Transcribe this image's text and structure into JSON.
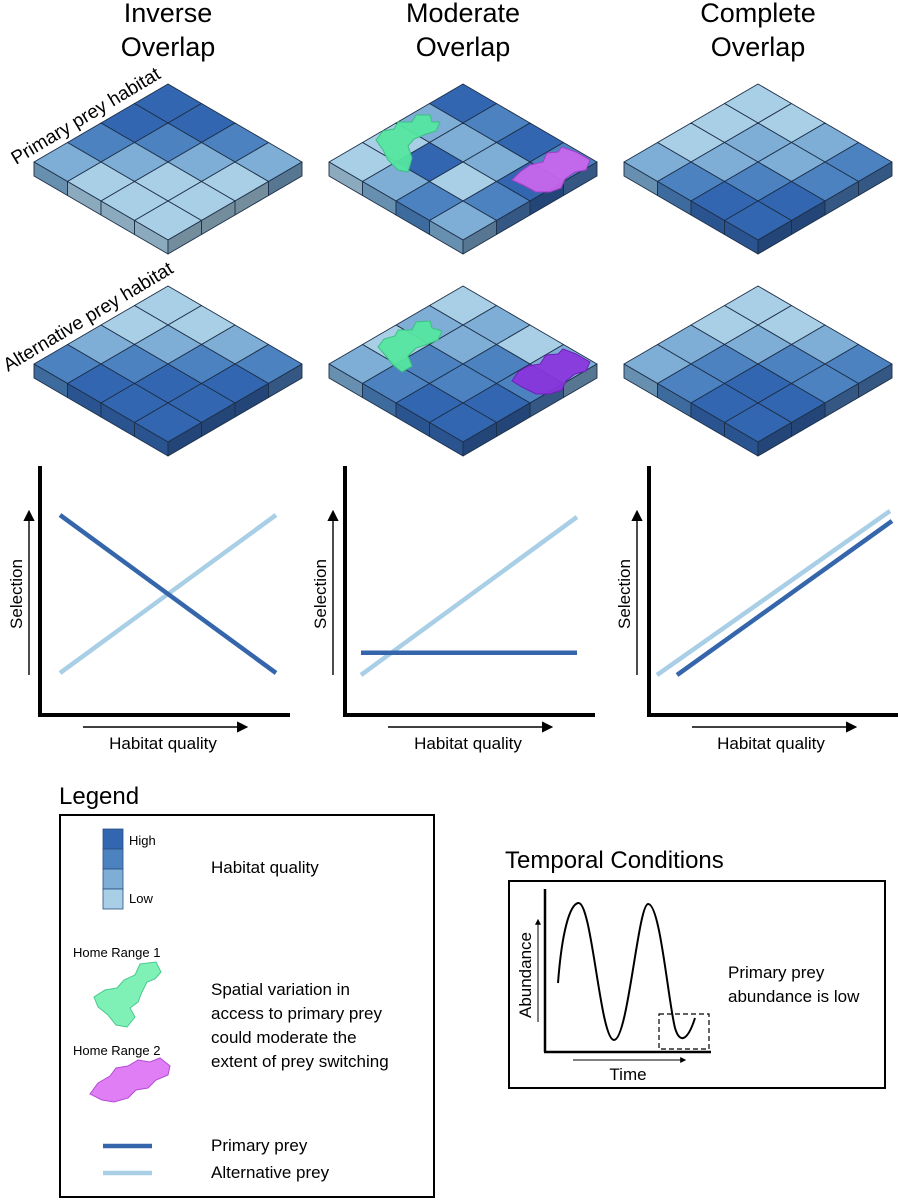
{
  "colors": {
    "q1": "#3366b0",
    "q2": "#4c82c0",
    "q3": "#7eaed5",
    "q4": "#a9cfe6",
    "primary_line": "#3566ab",
    "alternative_line": "#a9cfe6",
    "home_range_1": "#55e6a0",
    "home_range_2": "#cc66ee"
  },
  "columns": [
    {
      "title_line1": "Inverse",
      "title_line2": "Overlap"
    },
    {
      "title_line1": "Moderate",
      "title_line2": "Overlap"
    },
    {
      "title_line1": "Complete",
      "title_line2": "Overlap"
    }
  ],
  "rows": {
    "primary": "Primary prey habitat",
    "alternative": "Alternative prey habitat"
  },
  "grids": {
    "primary": [
      [
        [
          1,
          1,
          2,
          3
        ],
        [
          1,
          2,
          3,
          4
        ],
        [
          2,
          3,
          4,
          4
        ],
        [
          3,
          4,
          4,
          4
        ]
      ],
      [
        [
          1,
          3,
          4,
          4
        ],
        [
          2,
          3,
          1,
          3
        ],
        [
          1,
          3,
          4,
          2
        ],
        [
          2,
          1,
          2,
          3
        ]
      ],
      [
        [
          4,
          4,
          4,
          3
        ],
        [
          4,
          3,
          3,
          2
        ],
        [
          3,
          3,
          2,
          1
        ],
        [
          2,
          2,
          1,
          1
        ]
      ]
    ],
    "alternative": [
      [
        [
          4,
          4,
          3,
          2
        ],
        [
          4,
          3,
          2,
          1
        ],
        [
          3,
          2,
          1,
          1
        ],
        [
          2,
          1,
          1,
          1
        ]
      ],
      [
        [
          4,
          3,
          4,
          3
        ],
        [
          3,
          3,
          2,
          2
        ],
        [
          4,
          2,
          2,
          1
        ],
        [
          3,
          2,
          1,
          1
        ]
      ],
      [
        [
          4,
          4,
          3,
          3
        ],
        [
          4,
          3,
          2,
          2
        ],
        [
          3,
          2,
          1,
          1
        ],
        [
          2,
          2,
          1,
          1
        ]
      ]
    ]
  },
  "graphs": {
    "x_label": "Habitat quality",
    "y_label": "Selection",
    "series": [
      "Primary prey",
      "Alternative prey"
    ]
  },
  "chart_data": [
    {
      "type": "line",
      "title": "Inverse Overlap",
      "xlabel": "Habitat quality",
      "ylabel": "Selection",
      "x": [
        0,
        1
      ],
      "series": [
        {
          "name": "Primary prey",
          "values": [
            0.85,
            0.0
          ]
        },
        {
          "name": "Alternative prey",
          "values": [
            0.0,
            0.85
          ]
        }
      ],
      "xlim": [
        0,
        1
      ],
      "ylim": [
        0,
        1
      ]
    },
    {
      "type": "line",
      "title": "Moderate Overlap",
      "xlabel": "Habitat quality",
      "ylabel": "Selection",
      "x": [
        0,
        1
      ],
      "series": [
        {
          "name": "Primary prey",
          "values": [
            0.12,
            0.12
          ]
        },
        {
          "name": "Alternative prey",
          "values": [
            0.0,
            0.85
          ]
        }
      ],
      "xlim": [
        0,
        1
      ],
      "ylim": [
        0,
        1
      ]
    },
    {
      "type": "line",
      "title": "Complete Overlap",
      "xlabel": "Habitat quality",
      "ylabel": "Selection",
      "x": [
        0,
        1
      ],
      "series": [
        {
          "name": "Primary prey",
          "values": [
            0.0,
            0.82
          ]
        },
        {
          "name": "Alternative prey",
          "values": [
            0.0,
            0.82
          ]
        }
      ],
      "xlim": [
        0,
        1
      ],
      "ylim": [
        0,
        1
      ]
    }
  ],
  "legend": {
    "title": "Legend",
    "quality_high": "High",
    "quality_low": "Low",
    "quality_label": "Habitat quality",
    "home_range_1": "Home Range 1",
    "home_range_2": "Home Range 2",
    "spatial_line1": "Spatial variation in",
    "spatial_line2": "access to primary prey",
    "spatial_line3": "could moderate the",
    "spatial_line4": "extent of prey switching",
    "primary_prey": "Primary prey",
    "alternative_prey": "Alternative prey"
  },
  "temporal": {
    "title": "Temporal Conditions",
    "y_label": "Abundance",
    "x_label": "Time",
    "note_line1": "Primary prey",
    "note_line2": "abundance is low"
  }
}
